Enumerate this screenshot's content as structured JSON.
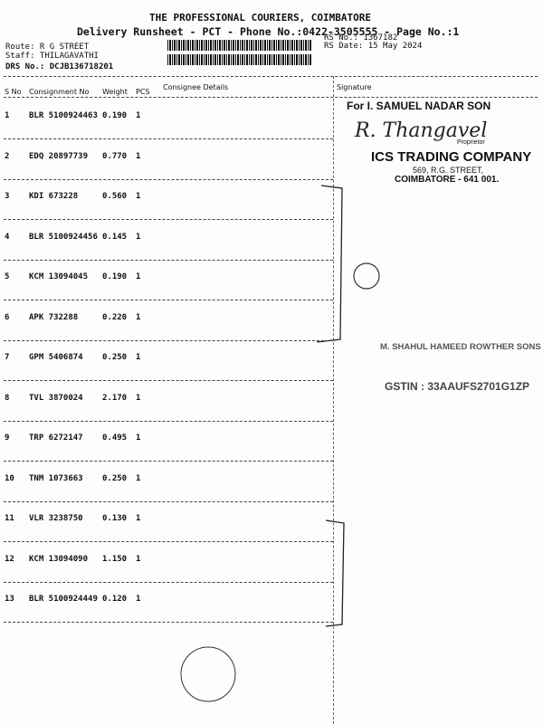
{
  "header": {
    "title": "THE PROFESSIONAL COURIERS, COIMBATORE",
    "subtitle": "Delivery Runsheet - PCT - Phone No.:0422-3505555 - Page No.:1",
    "route": "Route: R G STREET",
    "staff": "Staff: THILAGAVATHI",
    "drs_no": "DRS No.: DCJB136718201",
    "rs_no": "RS No.: 1367182",
    "rs_date": "RS Date: 15 May 2024"
  },
  "table": {
    "columns": [
      "S No",
      "Consignment No",
      "Weight",
      "PCS",
      "Consignee Details",
      "Signature"
    ],
    "rows": [
      [
        "1",
        "BLR 5100924463",
        "0.190",
        "1"
      ],
      [
        "2",
        "EDQ 20897739",
        "0.770",
        "1"
      ],
      [
        "3",
        "KDI 673228",
        "0.560",
        "1"
      ],
      [
        "4",
        "BLR 5100924456",
        "0.145",
        "1"
      ],
      [
        "5",
        "KCM 13094045",
        "0.190",
        "1"
      ],
      [
        "6",
        "APK 732288",
        "0.220",
        "1"
      ],
      [
        "7",
        "GPM 5406874",
        "0.250",
        "1"
      ],
      [
        "8",
        "TVL 3870024",
        "2.170",
        "1"
      ],
      [
        "9",
        "TRP 6272147",
        "0.495",
        "1"
      ],
      [
        "10",
        "TNM 1073663",
        "0.250",
        "1"
      ],
      [
        "11",
        "VLR 3238750",
        "0.130",
        "1"
      ],
      [
        "12",
        "KCM 13094090",
        "1.150",
        "1"
      ],
      [
        "13",
        "BLR 5100924449",
        "0.120",
        "1"
      ]
    ]
  },
  "stamps": {
    "samuel": "For I. SAMUEL NADAR SON",
    "signature": "R. Thangavel",
    "proprietor": "Proprietor",
    "ics": "ICS TRADING COMPANY",
    "ics_address": "569, R.G. STREET,",
    "ics_city": "COIMBATORE - 641 001.",
    "shahul": "M. SHAHUL HAMEED ROWTHER SONS",
    "gstin": "GSTIN : 33AAUFS2701G1ZP"
  }
}
